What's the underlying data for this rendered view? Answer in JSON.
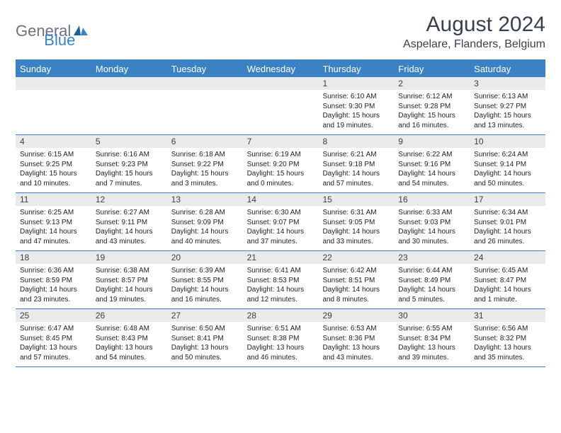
{
  "logo": {
    "general": "General",
    "blue": "Blue"
  },
  "title": "August 2024",
  "location": "Aspelare, Flanders, Belgium",
  "colors": {
    "header_blue": "#3b82c4",
    "daynum_bg": "#e9eaec",
    "text": "#222222",
    "title_text": "#374151",
    "logo_gray": "#6b7280"
  },
  "weekdays": [
    "Sunday",
    "Monday",
    "Tuesday",
    "Wednesday",
    "Thursday",
    "Friday",
    "Saturday"
  ],
  "weeks": [
    [
      {
        "n": "",
        "sr": "",
        "ss": "",
        "dl": ""
      },
      {
        "n": "",
        "sr": "",
        "ss": "",
        "dl": ""
      },
      {
        "n": "",
        "sr": "",
        "ss": "",
        "dl": ""
      },
      {
        "n": "",
        "sr": "",
        "ss": "",
        "dl": ""
      },
      {
        "n": "1",
        "sr": "Sunrise: 6:10 AM",
        "ss": "Sunset: 9:30 PM",
        "dl": "Daylight: 15 hours and 19 minutes."
      },
      {
        "n": "2",
        "sr": "Sunrise: 6:12 AM",
        "ss": "Sunset: 9:28 PM",
        "dl": "Daylight: 15 hours and 16 minutes."
      },
      {
        "n": "3",
        "sr": "Sunrise: 6:13 AM",
        "ss": "Sunset: 9:27 PM",
        "dl": "Daylight: 15 hours and 13 minutes."
      }
    ],
    [
      {
        "n": "4",
        "sr": "Sunrise: 6:15 AM",
        "ss": "Sunset: 9:25 PM",
        "dl": "Daylight: 15 hours and 10 minutes."
      },
      {
        "n": "5",
        "sr": "Sunrise: 6:16 AM",
        "ss": "Sunset: 9:23 PM",
        "dl": "Daylight: 15 hours and 7 minutes."
      },
      {
        "n": "6",
        "sr": "Sunrise: 6:18 AM",
        "ss": "Sunset: 9:22 PM",
        "dl": "Daylight: 15 hours and 3 minutes."
      },
      {
        "n": "7",
        "sr": "Sunrise: 6:19 AM",
        "ss": "Sunset: 9:20 PM",
        "dl": "Daylight: 15 hours and 0 minutes."
      },
      {
        "n": "8",
        "sr": "Sunrise: 6:21 AM",
        "ss": "Sunset: 9:18 PM",
        "dl": "Daylight: 14 hours and 57 minutes."
      },
      {
        "n": "9",
        "sr": "Sunrise: 6:22 AM",
        "ss": "Sunset: 9:16 PM",
        "dl": "Daylight: 14 hours and 54 minutes."
      },
      {
        "n": "10",
        "sr": "Sunrise: 6:24 AM",
        "ss": "Sunset: 9:14 PM",
        "dl": "Daylight: 14 hours and 50 minutes."
      }
    ],
    [
      {
        "n": "11",
        "sr": "Sunrise: 6:25 AM",
        "ss": "Sunset: 9:13 PM",
        "dl": "Daylight: 14 hours and 47 minutes."
      },
      {
        "n": "12",
        "sr": "Sunrise: 6:27 AM",
        "ss": "Sunset: 9:11 PM",
        "dl": "Daylight: 14 hours and 43 minutes."
      },
      {
        "n": "13",
        "sr": "Sunrise: 6:28 AM",
        "ss": "Sunset: 9:09 PM",
        "dl": "Daylight: 14 hours and 40 minutes."
      },
      {
        "n": "14",
        "sr": "Sunrise: 6:30 AM",
        "ss": "Sunset: 9:07 PM",
        "dl": "Daylight: 14 hours and 37 minutes."
      },
      {
        "n": "15",
        "sr": "Sunrise: 6:31 AM",
        "ss": "Sunset: 9:05 PM",
        "dl": "Daylight: 14 hours and 33 minutes."
      },
      {
        "n": "16",
        "sr": "Sunrise: 6:33 AM",
        "ss": "Sunset: 9:03 PM",
        "dl": "Daylight: 14 hours and 30 minutes."
      },
      {
        "n": "17",
        "sr": "Sunrise: 6:34 AM",
        "ss": "Sunset: 9:01 PM",
        "dl": "Daylight: 14 hours and 26 minutes."
      }
    ],
    [
      {
        "n": "18",
        "sr": "Sunrise: 6:36 AM",
        "ss": "Sunset: 8:59 PM",
        "dl": "Daylight: 14 hours and 23 minutes."
      },
      {
        "n": "19",
        "sr": "Sunrise: 6:38 AM",
        "ss": "Sunset: 8:57 PM",
        "dl": "Daylight: 14 hours and 19 minutes."
      },
      {
        "n": "20",
        "sr": "Sunrise: 6:39 AM",
        "ss": "Sunset: 8:55 PM",
        "dl": "Daylight: 14 hours and 16 minutes."
      },
      {
        "n": "21",
        "sr": "Sunrise: 6:41 AM",
        "ss": "Sunset: 8:53 PM",
        "dl": "Daylight: 14 hours and 12 minutes."
      },
      {
        "n": "22",
        "sr": "Sunrise: 6:42 AM",
        "ss": "Sunset: 8:51 PM",
        "dl": "Daylight: 14 hours and 8 minutes."
      },
      {
        "n": "23",
        "sr": "Sunrise: 6:44 AM",
        "ss": "Sunset: 8:49 PM",
        "dl": "Daylight: 14 hours and 5 minutes."
      },
      {
        "n": "24",
        "sr": "Sunrise: 6:45 AM",
        "ss": "Sunset: 8:47 PM",
        "dl": "Daylight: 14 hours and 1 minute."
      }
    ],
    [
      {
        "n": "25",
        "sr": "Sunrise: 6:47 AM",
        "ss": "Sunset: 8:45 PM",
        "dl": "Daylight: 13 hours and 57 minutes."
      },
      {
        "n": "26",
        "sr": "Sunrise: 6:48 AM",
        "ss": "Sunset: 8:43 PM",
        "dl": "Daylight: 13 hours and 54 minutes."
      },
      {
        "n": "27",
        "sr": "Sunrise: 6:50 AM",
        "ss": "Sunset: 8:41 PM",
        "dl": "Daylight: 13 hours and 50 minutes."
      },
      {
        "n": "28",
        "sr": "Sunrise: 6:51 AM",
        "ss": "Sunset: 8:38 PM",
        "dl": "Daylight: 13 hours and 46 minutes."
      },
      {
        "n": "29",
        "sr": "Sunrise: 6:53 AM",
        "ss": "Sunset: 8:36 PM",
        "dl": "Daylight: 13 hours and 43 minutes."
      },
      {
        "n": "30",
        "sr": "Sunrise: 6:55 AM",
        "ss": "Sunset: 8:34 PM",
        "dl": "Daylight: 13 hours and 39 minutes."
      },
      {
        "n": "31",
        "sr": "Sunrise: 6:56 AM",
        "ss": "Sunset: 8:32 PM",
        "dl": "Daylight: 13 hours and 35 minutes."
      }
    ]
  ]
}
